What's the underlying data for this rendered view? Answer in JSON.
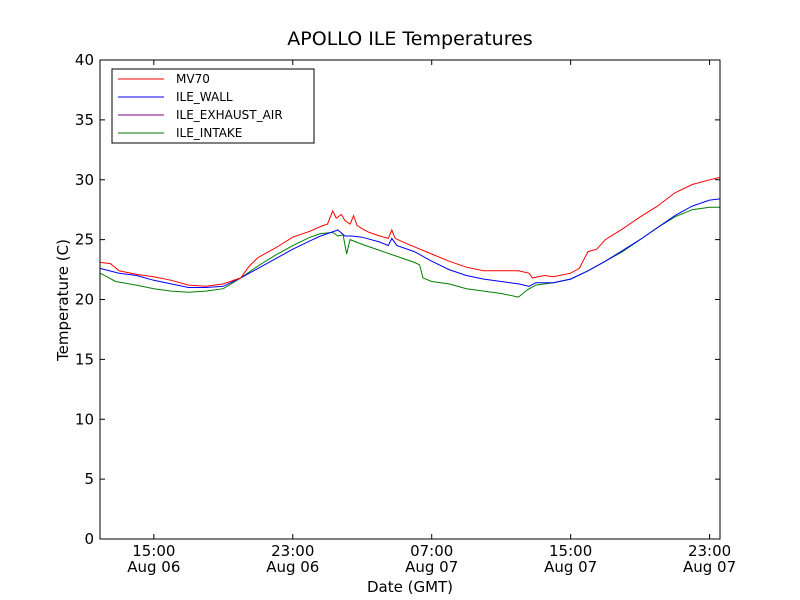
{
  "chart_data": {
    "type": "line",
    "title": "APOLLO ILE Temperatures",
    "xlabel": "Date (GMT)",
    "ylabel": "Temperature (C)",
    "xlim": [
      11.9,
      47.6
    ],
    "ylim": [
      0,
      40
    ],
    "yticks": [
      0,
      5,
      10,
      15,
      20,
      25,
      30,
      35,
      40
    ],
    "xticks": [
      {
        "value": 15,
        "time": "15:00",
        "date": "Aug 06"
      },
      {
        "value": 23,
        "time": "23:00",
        "date": "Aug 06"
      },
      {
        "value": 31,
        "time": "07:00",
        "date": "Aug 07"
      },
      {
        "value": 39,
        "time": "15:00",
        "date": "Aug 07"
      },
      {
        "value": 47,
        "time": "23:00",
        "date": "Aug 07"
      }
    ],
    "grid": false,
    "legend_position": "top-left",
    "series": [
      {
        "name": "MV70",
        "color": "#ff0000",
        "points": [
          [
            11.9,
            23.1
          ],
          [
            12.5,
            23.0
          ],
          [
            13.0,
            22.4
          ],
          [
            14.0,
            22.1
          ],
          [
            15.0,
            21.9
          ],
          [
            16.0,
            21.6
          ],
          [
            17.0,
            21.2
          ],
          [
            18.0,
            21.1
          ],
          [
            19.0,
            21.3
          ],
          [
            20.0,
            21.8
          ],
          [
            20.5,
            22.8
          ],
          [
            21.0,
            23.5
          ],
          [
            22.0,
            24.3
          ],
          [
            23.0,
            25.2
          ],
          [
            24.0,
            25.7
          ],
          [
            24.6,
            26.1
          ],
          [
            25.0,
            26.3
          ],
          [
            25.3,
            27.4
          ],
          [
            25.5,
            26.8
          ],
          [
            25.8,
            27.1
          ],
          [
            26.0,
            26.6
          ],
          [
            26.3,
            26.3
          ],
          [
            26.5,
            27.0
          ],
          [
            26.7,
            26.2
          ],
          [
            27.0,
            25.9
          ],
          [
            27.4,
            25.6
          ],
          [
            28.0,
            25.3
          ],
          [
            28.5,
            25.1
          ],
          [
            28.7,
            25.8
          ],
          [
            28.9,
            25.1
          ],
          [
            29.5,
            24.7
          ],
          [
            30.0,
            24.4
          ],
          [
            31.0,
            23.8
          ],
          [
            32.0,
            23.2
          ],
          [
            33.0,
            22.7
          ],
          [
            34.0,
            22.4
          ],
          [
            35.0,
            22.4
          ],
          [
            36.0,
            22.4
          ],
          [
            36.6,
            22.2
          ],
          [
            36.8,
            21.8
          ],
          [
            37.5,
            22.0
          ],
          [
            38.0,
            21.9
          ],
          [
            39.0,
            22.2
          ],
          [
            39.5,
            22.6
          ],
          [
            40.0,
            24.0
          ],
          [
            40.5,
            24.2
          ],
          [
            41.0,
            25.0
          ],
          [
            42.0,
            25.9
          ],
          [
            43.0,
            26.9
          ],
          [
            44.0,
            27.8
          ],
          [
            45.0,
            28.9
          ],
          [
            46.0,
            29.6
          ],
          [
            47.0,
            30.0
          ],
          [
            47.6,
            30.2
          ]
        ]
      },
      {
        "name": "ILE_WALL",
        "color": "#0000ff",
        "points": [
          [
            11.9,
            22.6
          ],
          [
            13.0,
            22.2
          ],
          [
            14.0,
            22.0
          ],
          [
            15.0,
            21.6
          ],
          [
            16.0,
            21.3
          ],
          [
            17.0,
            21.0
          ],
          [
            18.0,
            21.0
          ],
          [
            19.0,
            21.1
          ],
          [
            20.0,
            21.8
          ],
          [
            21.0,
            22.6
          ],
          [
            22.0,
            23.4
          ],
          [
            23.0,
            24.2
          ],
          [
            24.0,
            24.9
          ],
          [
            24.6,
            25.3
          ],
          [
            25.0,
            25.5
          ],
          [
            25.6,
            25.8
          ],
          [
            26.0,
            25.3
          ],
          [
            26.4,
            25.3
          ],
          [
            27.0,
            25.2
          ],
          [
            28.0,
            24.8
          ],
          [
            28.5,
            24.5
          ],
          [
            28.7,
            25.1
          ],
          [
            29.0,
            24.5
          ],
          [
            30.0,
            24.0
          ],
          [
            31.0,
            23.2
          ],
          [
            32.0,
            22.5
          ],
          [
            33.0,
            22.0
          ],
          [
            34.0,
            21.7
          ],
          [
            35.0,
            21.5
          ],
          [
            36.0,
            21.3
          ],
          [
            36.6,
            21.1
          ],
          [
            37.0,
            21.4
          ],
          [
            38.0,
            21.4
          ],
          [
            39.0,
            21.7
          ],
          [
            40.0,
            22.4
          ],
          [
            41.0,
            23.2
          ],
          [
            42.0,
            24.1
          ],
          [
            43.0,
            25.0
          ],
          [
            44.0,
            26.0
          ],
          [
            45.0,
            27.0
          ],
          [
            46.0,
            27.8
          ],
          [
            47.0,
            28.3
          ],
          [
            47.6,
            28.4
          ]
        ]
      },
      {
        "name": "ILE_EXHAUST_AIR",
        "color": "#800080",
        "points": []
      },
      {
        "name": "ILE_INTAKE",
        "color": "#007f00",
        "points": [
          [
            11.9,
            22.2
          ],
          [
            12.3,
            21.9
          ],
          [
            12.8,
            21.5
          ],
          [
            14.0,
            21.2
          ],
          [
            15.0,
            20.9
          ],
          [
            16.0,
            20.7
          ],
          [
            17.0,
            20.6
          ],
          [
            18.0,
            20.7
          ],
          [
            19.0,
            20.9
          ],
          [
            20.0,
            21.8
          ],
          [
            21.0,
            22.8
          ],
          [
            22.0,
            23.7
          ],
          [
            23.0,
            24.5
          ],
          [
            24.0,
            25.2
          ],
          [
            24.6,
            25.5
          ],
          [
            25.3,
            25.6
          ],
          [
            25.6,
            25.3
          ],
          [
            25.9,
            25.4
          ],
          [
            26.1,
            23.8
          ],
          [
            26.3,
            25.0
          ],
          [
            27.0,
            24.6
          ],
          [
            28.0,
            24.1
          ],
          [
            29.0,
            23.6
          ],
          [
            30.0,
            23.1
          ],
          [
            30.3,
            22.9
          ],
          [
            30.5,
            21.8
          ],
          [
            31.0,
            21.5
          ],
          [
            32.0,
            21.3
          ],
          [
            33.0,
            20.9
          ],
          [
            34.0,
            20.7
          ],
          [
            35.0,
            20.5
          ],
          [
            36.0,
            20.2
          ],
          [
            36.5,
            20.8
          ],
          [
            37.0,
            21.2
          ],
          [
            38.0,
            21.4
          ],
          [
            39.0,
            21.7
          ],
          [
            40.0,
            22.4
          ],
          [
            41.0,
            23.2
          ],
          [
            42.0,
            24.0
          ],
          [
            43.0,
            25.0
          ],
          [
            44.0,
            26.0
          ],
          [
            45.0,
            26.9
          ],
          [
            46.0,
            27.5
          ],
          [
            47.0,
            27.7
          ],
          [
            47.6,
            27.7
          ]
        ]
      }
    ]
  }
}
